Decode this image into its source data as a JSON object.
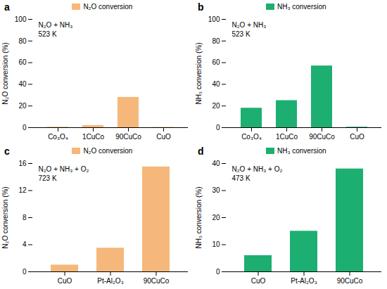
{
  "chart_data": [
    {
      "type": "bar",
      "title": "a",
      "categories": [
        "Co₃O₄",
        "1CuCo",
        "90CuCo",
        "CuO"
      ],
      "series": [
        {
          "name": "N₂O conversion",
          "color": "#F5B87A",
          "values": [
            0.5,
            2.0,
            28.0,
            0.3
          ]
        }
      ],
      "ylabel": "N₂O conversion (%)",
      "annotation": "N₂O + NH₃\n523 K",
      "ylim": [
        0,
        100
      ],
      "yticks": [
        0,
        20,
        40,
        60,
        80,
        100
      ],
      "legend": "top",
      "grid": false
    },
    {
      "type": "bar",
      "title": "b",
      "categories": [
        "Co₃O₄",
        "1CuCo",
        "90CuCo",
        "CuO"
      ],
      "series": [
        {
          "name": "NH₃ conversion",
          "color": "#1DAE72",
          "values": [
            18.0,
            25.0,
            57.0,
            0.5
          ]
        }
      ],
      "ylabel": "NH₃ conversion (%)",
      "annotation": "N₂O + NH₃\n523 K",
      "ylim": [
        0,
        100
      ],
      "yticks": [
        0,
        20,
        40,
        60,
        80,
        100
      ],
      "legend": "top",
      "grid": false
    },
    {
      "type": "bar",
      "title": "c",
      "categories": [
        "CuO",
        "Pt-Al₂O₃",
        "90CuCo"
      ],
      "series": [
        {
          "name": "N₂O conversion",
          "color": "#F5B87A",
          "values": [
            1.0,
            3.5,
            15.5
          ]
        }
      ],
      "ylabel": "N₂O conversion (%)",
      "annotation": "N₂O + NH₃ + O₂\n723 K",
      "ylim": [
        0,
        16
      ],
      "yticks": [
        0,
        4,
        8,
        12,
        16
      ],
      "legend": "top",
      "grid": false
    },
    {
      "type": "bar",
      "title": "d",
      "categories": [
        "CuO",
        "Pt-Al₂O₃",
        "90CuCo"
      ],
      "series": [
        {
          "name": "NH₃ conversion",
          "color": "#1DAE72",
          "values": [
            6.0,
            15.0,
            38.0
          ]
        }
      ],
      "ylabel": "NH₃ conversion (%)",
      "annotation": "N₂O + NH₃ + O₂\n473 K",
      "ylim": [
        0,
        40
      ],
      "yticks": [
        0,
        10,
        20,
        30,
        40
      ],
      "legend": "top",
      "grid": false
    }
  ]
}
